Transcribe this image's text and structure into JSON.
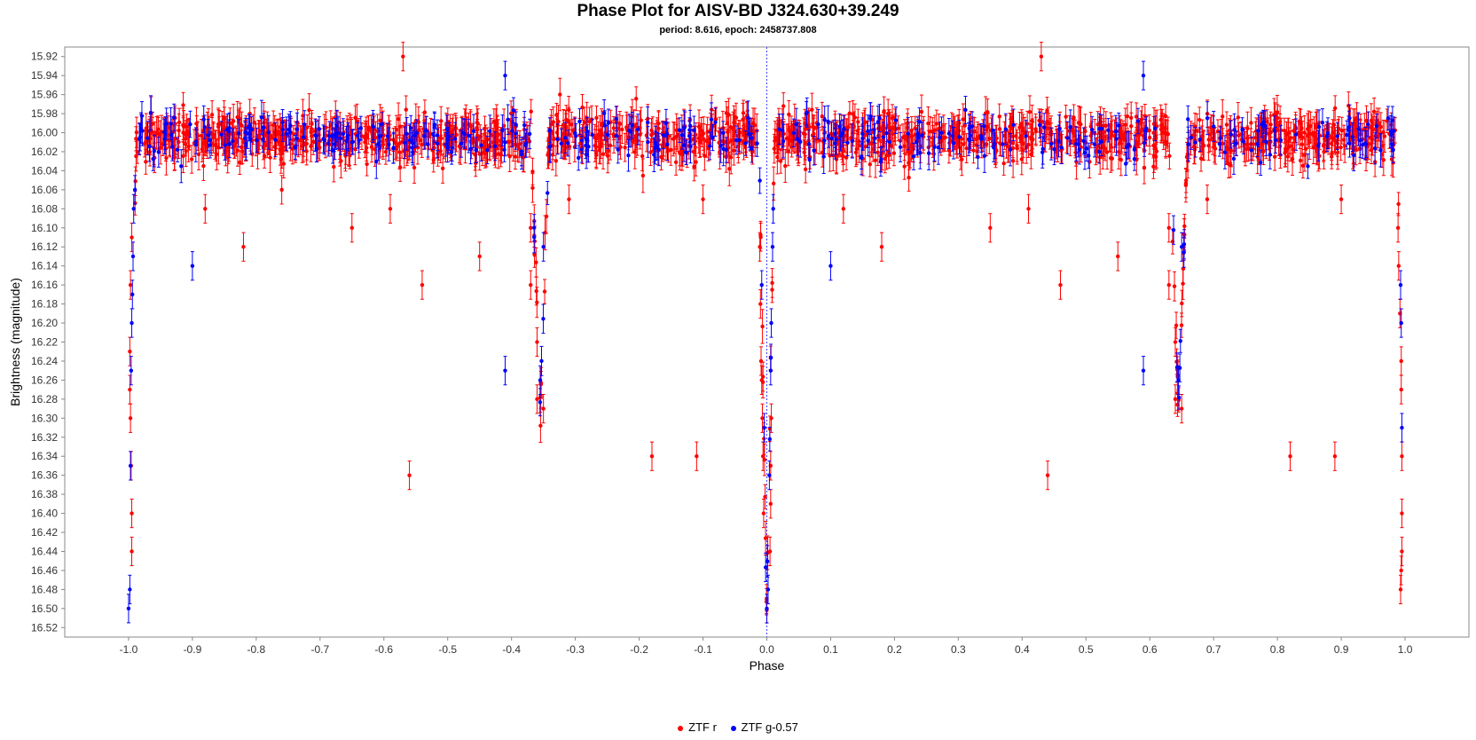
{
  "chart_data": {
    "type": "scatter",
    "title": "Phase Plot for AISV-BD J324.630+39.249",
    "subtitle": "period: 8.616, epoch: 2458737.808",
    "xlabel": "Phase",
    "ylabel": "Brightness (magnitude)",
    "xlim": [
      -1.1,
      1.1
    ],
    "ylim": [
      16.53,
      15.91
    ],
    "y_inverted": true,
    "x_ticks": [
      "-1.0",
      "-0.9",
      "-0.8",
      "-0.7",
      "-0.6",
      "-0.5",
      "-0.4",
      "-0.3",
      "-0.2",
      "-0.1",
      "0.0",
      "0.1",
      "0.2",
      "0.3",
      "0.4",
      "0.5",
      "0.6",
      "0.7",
      "0.8",
      "0.9",
      "1.0"
    ],
    "y_ticks": [
      "15.92",
      "15.94",
      "15.96",
      "15.98",
      "16.00",
      "16.02",
      "16.04",
      "16.06",
      "16.08",
      "16.10",
      "16.12",
      "16.14",
      "16.16",
      "16.18",
      "16.20",
      "16.22",
      "16.24",
      "16.26",
      "16.28",
      "16.30",
      "16.32",
      "16.34",
      "16.36",
      "16.38",
      "16.40",
      "16.42",
      "16.44",
      "16.46",
      "16.48",
      "16.50",
      "16.52"
    ],
    "grid": false,
    "legend_position": "bottom",
    "baseline_magnitude": 16.005,
    "primary_eclipse_phase": 0.0,
    "primary_eclipse_depth_mag": 16.51,
    "secondary_eclipse_phase": 0.645,
    "secondary_eclipse_depth_mag": 16.29,
    "series": [
      {
        "name": "ZTF r",
        "color": "#ff0000",
        "outliers": [
          [
            -0.82,
            16.12
          ],
          [
            -0.88,
            16.08
          ],
          [
            -0.76,
            16.06
          ],
          [
            -0.65,
            16.1
          ],
          [
            -0.59,
            16.08
          ],
          [
            -0.56,
            16.36
          ],
          [
            -0.54,
            16.16
          ],
          [
            -0.45,
            16.13
          ],
          [
            -0.31,
            16.07
          ],
          [
            -0.18,
            16.34
          ],
          [
            -0.11,
            16.34
          ],
          [
            -0.1,
            16.07
          ],
          [
            0.18,
            16.12
          ],
          [
            0.12,
            16.08
          ],
          [
            0.35,
            16.1
          ],
          [
            0.41,
            16.08
          ],
          [
            0.44,
            16.36
          ],
          [
            0.46,
            16.16
          ],
          [
            0.55,
            16.13
          ],
          [
            0.69,
            16.07
          ],
          [
            0.82,
            16.34
          ],
          [
            0.89,
            16.34
          ],
          [
            0.9,
            16.07
          ],
          [
            -0.57,
            15.92
          ],
          [
            0.43,
            15.92
          ],
          [
            -0.81,
            15.98
          ],
          [
            0.19,
            15.98
          ]
        ],
        "eclipse_points": [
          [
            -0.995,
            16.44
          ],
          [
            -0.995,
            16.4
          ],
          [
            -0.996,
            16.35
          ],
          [
            -0.997,
            16.3
          ],
          [
            -0.998,
            16.27
          ],
          [
            -0.998,
            16.23
          ],
          [
            -0.997,
            16.16
          ],
          [
            -0.995,
            16.11
          ],
          [
            0.993,
            16.48
          ],
          [
            0.994,
            16.46
          ],
          [
            0.995,
            16.44
          ],
          [
            0.995,
            16.4
          ],
          [
            0.995,
            16.34
          ],
          [
            0.994,
            16.27
          ],
          [
            0.994,
            16.24
          ],
          [
            0.992,
            16.19
          ],
          [
            0.99,
            16.14
          ],
          [
            0.989,
            16.1
          ],
          [
            -0.005,
            16.4
          ],
          [
            -0.006,
            16.34
          ],
          [
            -0.007,
            16.3
          ],
          [
            -0.008,
            16.26
          ],
          [
            -0.009,
            16.24
          ],
          [
            -0.01,
            16.18
          ],
          [
            -0.011,
            16.12
          ],
          [
            0.005,
            16.44
          ],
          [
            0.006,
            16.39
          ],
          [
            0.006,
            16.35
          ],
          [
            0.007,
            16.3
          ],
          [
            -0.36,
            16.28
          ],
          [
            -0.35,
            16.29
          ],
          [
            -0.36,
            16.22
          ],
          [
            -0.37,
            16.16
          ],
          [
            -0.37,
            16.1
          ],
          [
            0.64,
            16.28
          ],
          [
            0.65,
            16.29
          ],
          [
            0.64,
            16.22
          ],
          [
            0.63,
            16.16
          ],
          [
            0.63,
            16.1
          ]
        ]
      },
      {
        "name": "ZTF g-0.57",
        "color": "#0000ff",
        "outliers": [
          [
            -0.9,
            16.14
          ],
          [
            -0.41,
            16.25
          ],
          [
            0.1,
            16.14
          ],
          [
            0.59,
            16.25
          ],
          [
            -0.41,
            15.94
          ],
          [
            0.59,
            15.94
          ]
        ],
        "eclipse_points": [
          [
            -1.0,
            16.5
          ],
          [
            -0.998,
            16.48
          ],
          [
            -0.997,
            16.35
          ],
          [
            -0.996,
            16.25
          ],
          [
            -0.995,
            16.2
          ],
          [
            -0.994,
            16.17
          ],
          [
            -0.993,
            16.13
          ],
          [
            -0.992,
            16.08
          ],
          [
            -0.99,
            16.06
          ],
          [
            0.0,
            16.5
          ],
          [
            0.002,
            16.48
          ],
          [
            0.004,
            16.36
          ],
          [
            -0.004,
            16.31
          ],
          [
            0.006,
            16.25
          ],
          [
            0.007,
            16.2
          ],
          [
            -0.008,
            16.16
          ],
          [
            0.009,
            16.12
          ],
          [
            0.01,
            16.08
          ],
          [
            0.995,
            16.31
          ],
          [
            0.994,
            16.2
          ],
          [
            0.993,
            16.16
          ],
          [
            -0.355,
            16.26
          ],
          [
            -0.35,
            16.12
          ],
          [
            0.645,
            16.26
          ],
          [
            0.65,
            16.12
          ]
        ]
      }
    ]
  }
}
